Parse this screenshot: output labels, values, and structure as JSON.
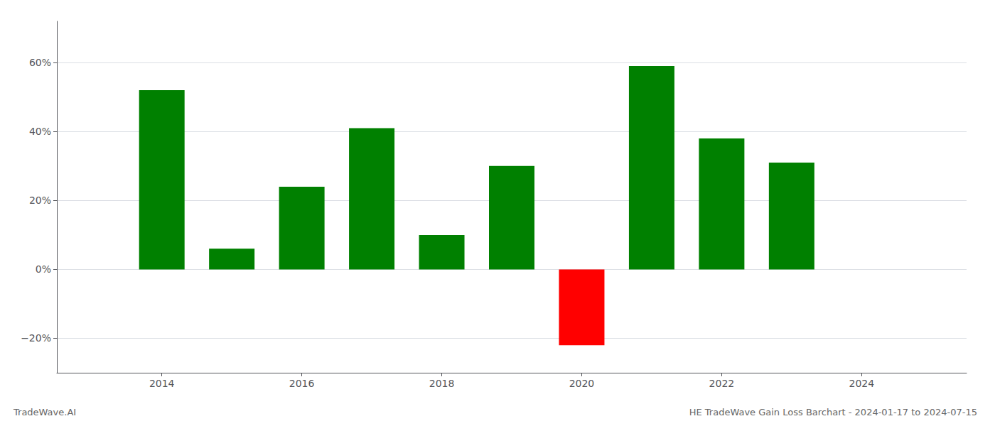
{
  "chart_data": {
    "type": "bar",
    "title": "HE TradeWave Gain Loss Barchart - 2024-01-17 to 2024-07-15",
    "annotations": [
      "TradeWave.AI"
    ],
    "x": [
      2014,
      2015,
      2016,
      2017,
      2018,
      2019,
      2020,
      2021,
      2022,
      2023
    ],
    "values": [
      0.52,
      0.06,
      0.24,
      0.41,
      0.1,
      0.3,
      -0.22,
      0.59,
      0.38,
      0.31
    ],
    "colors": [
      "#008000",
      "#008000",
      "#008000",
      "#008000",
      "#008000",
      "#008000",
      "#ff0000",
      "#008000",
      "#008000",
      "#008000"
    ],
    "xlim": [
      2012.5,
      2025.5
    ],
    "xticks": [
      2014,
      2016,
      2018,
      2020,
      2022,
      2024
    ],
    "ylim": [
      -0.3,
      0.72
    ],
    "yticks": [
      {
        "value": -0.2,
        "label": "−20%"
      },
      {
        "value": 0.0,
        "label": "0%"
      },
      {
        "value": 0.2,
        "label": "20%"
      },
      {
        "value": 0.4,
        "label": "40%"
      },
      {
        "value": 0.6,
        "label": "60%"
      }
    ],
    "grid": true
  }
}
